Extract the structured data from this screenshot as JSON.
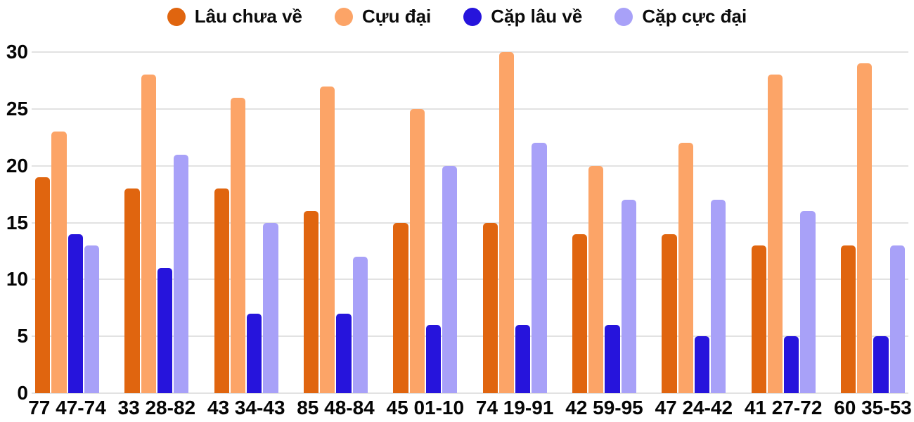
{
  "chart_data": {
    "type": "bar",
    "title": "",
    "xlabel": "",
    "ylabel": "",
    "ylim": [
      0,
      30
    ],
    "y_ticks": [
      0,
      5,
      10,
      15,
      20,
      25,
      30
    ],
    "grid": true,
    "legend_position": "top-center",
    "background_color": "#ffffff",
    "gridline_color": "#e2e2e2",
    "text_color": "#050505",
    "categories": [
      "77 47-74",
      "33 28-82",
      "43 34-43",
      "85 48-84",
      "45 01-10",
      "74 19-91",
      "42 59-95",
      "47 24-42",
      "41 27-72",
      "60 35-53"
    ],
    "series": [
      {
        "name": "Lâu chưa về",
        "color": "#e0650f",
        "values": [
          19,
          18,
          18,
          16,
          15,
          15,
          14,
          14,
          13,
          13
        ]
      },
      {
        "name": "Cựu đại",
        "color": "#fca467",
        "values": [
          23,
          28,
          26,
          27,
          25,
          30,
          20,
          22,
          28,
          29
        ]
      },
      {
        "name": "Cặp lâu về",
        "color": "#2614dc",
        "values": [
          14,
          11,
          7,
          7,
          6,
          6,
          6,
          5,
          5,
          5
        ]
      },
      {
        "name": "Cặp cực đại",
        "color": "#a8a1f8",
        "values": [
          13,
          21,
          15,
          12,
          20,
          22,
          17,
          17,
          16,
          13
        ]
      }
    ]
  }
}
